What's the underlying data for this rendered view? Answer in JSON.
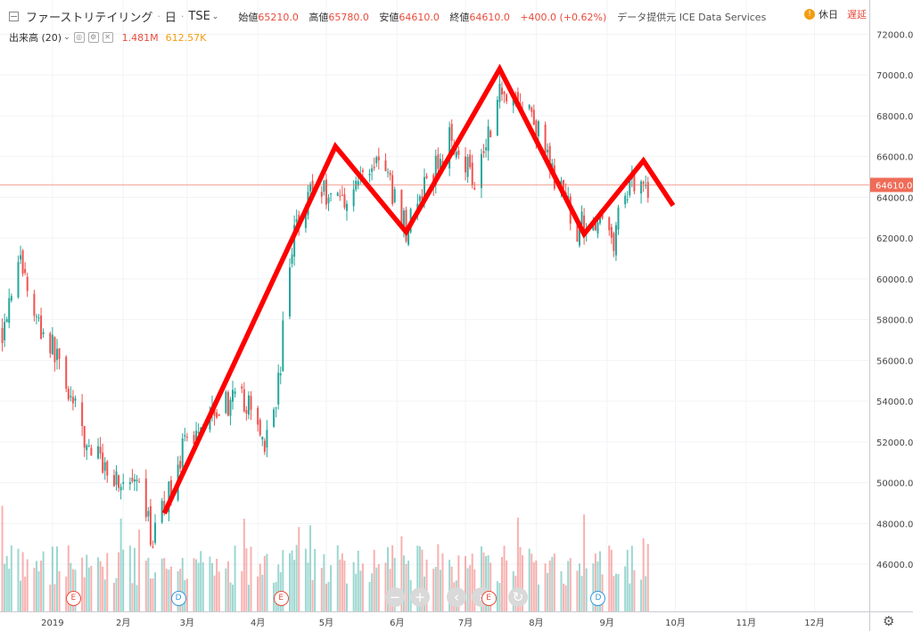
{
  "header": {
    "symbol_name": "ファーストリテイリング",
    "interval": "日",
    "exchange": "TSE",
    "open_label": "始値",
    "open_value": "65210.0",
    "high_label": "高値",
    "high_value": "65780.0",
    "low_label": "安値",
    "low_value": "64610.0",
    "close_label": "終値",
    "close_value": "64610.0",
    "change": "+400.0 (+0.62%)",
    "provider": "データ提供元 ICE Data Services"
  },
  "volume_legend": {
    "label": "出来高 (20)",
    "value_a": "1.481M",
    "value_b": "612.57K"
  },
  "status": {
    "holiday": "休日",
    "delayed": "遅延"
  },
  "markers": {
    "earnings": "E",
    "dividend": "D"
  },
  "nav_controls": {
    "zoom_out": "−",
    "zoom_in": "+",
    "back": "‹",
    "forward": "›",
    "reset": "↻"
  },
  "colors": {
    "up": "#26a69a",
    "down": "#ef5350",
    "overlay": "#ff0000",
    "last_price": "#ef6c57"
  },
  "chart_data": {
    "type": "candlestick",
    "ylim": [
      45000,
      72500
    ],
    "y_ticks": [
      "72000.0",
      "70000.0",
      "68000.0",
      "66000.0",
      "64000.0",
      "62000.0",
      "60000.0",
      "58000.0",
      "56000.0",
      "54000.0",
      "52000.0",
      "50000.0",
      "48000.0",
      "46000.0"
    ],
    "x_ticks": [
      "2019",
      "2月",
      "3月",
      "4月",
      "5月",
      "6月",
      "7月",
      "8月",
      "9月",
      "10月",
      "11月",
      "12月"
    ],
    "x_tick_dates": [
      "2019-01-01",
      "2019-02-01",
      "2019-03-01",
      "2019-04-01",
      "2019-05-01",
      "2019-06-01",
      "2019-07-01",
      "2019-08-01",
      "2019-09-01",
      "2019-10-01",
      "2019-11-01",
      "2019-12-01"
    ],
    "x_range": [
      "2018-12-09",
      "2019-12-25"
    ],
    "last_price": "64610.0",
    "price_path": [
      {
        "date": "2018-12-10",
        "price": 57500
      },
      {
        "date": "2018-12-17",
        "price": 61200
      },
      {
        "date": "2018-12-25",
        "price": 58000
      },
      {
        "date": "2019-01-04",
        "price": 56000
      },
      {
        "date": "2019-01-15",
        "price": 52000
      },
      {
        "date": "2019-01-31",
        "price": 50000
      },
      {
        "date": "2019-02-08",
        "price": 49500
      },
      {
        "date": "2019-02-14",
        "price": 47200
      },
      {
        "date": "2019-02-27",
        "price": 51500
      },
      {
        "date": "2019-03-12",
        "price": 53800
      },
      {
        "date": "2019-03-26",
        "price": 54000
      },
      {
        "date": "2019-04-05",
        "price": 52000
      },
      {
        "date": "2019-04-11",
        "price": 55500
      },
      {
        "date": "2019-04-12",
        "price": 57500
      },
      {
        "date": "2019-04-17",
        "price": 62500
      },
      {
        "date": "2019-04-24",
        "price": 64500
      },
      {
        "date": "2019-05-09",
        "price": 64000
      },
      {
        "date": "2019-05-24",
        "price": 66000
      },
      {
        "date": "2019-06-05",
        "price": 62500
      },
      {
        "date": "2019-06-25",
        "price": 67000
      },
      {
        "date": "2019-07-05",
        "price": 65000
      },
      {
        "date": "2019-07-17",
        "price": 69500
      },
      {
        "date": "2019-07-30",
        "price": 68000
      },
      {
        "date": "2019-08-07",
        "price": 65500
      },
      {
        "date": "2019-08-19",
        "price": 62500
      },
      {
        "date": "2019-08-27",
        "price": 63000
      },
      {
        "date": "2019-09-04",
        "price": 62000
      },
      {
        "date": "2019-09-11",
        "price": 65000
      },
      {
        "date": "2019-09-19",
        "price": 64610
      }
    ],
    "volume_range": [
      0,
      2000000
    ],
    "overlay_pattern": [
      {
        "date": "2019-02-19",
        "price": 48500
      },
      {
        "date": "2019-05-05",
        "price": 66500
      },
      {
        "date": "2019-06-05",
        "price": 62300
      },
      {
        "date": "2019-07-16",
        "price": 70300
      },
      {
        "date": "2019-08-22",
        "price": 62200
      },
      {
        "date": "2019-09-17",
        "price": 65800
      },
      {
        "date": "2019-09-30",
        "price": 63600
      }
    ],
    "event_markers": [
      {
        "type": "E",
        "date": "2019-01-10"
      },
      {
        "type": "D",
        "date": "2019-02-25"
      },
      {
        "type": "E",
        "date": "2019-04-11"
      },
      {
        "type": "E",
        "date": "2019-07-11"
      },
      {
        "type": "D",
        "date": "2019-08-28"
      }
    ]
  }
}
